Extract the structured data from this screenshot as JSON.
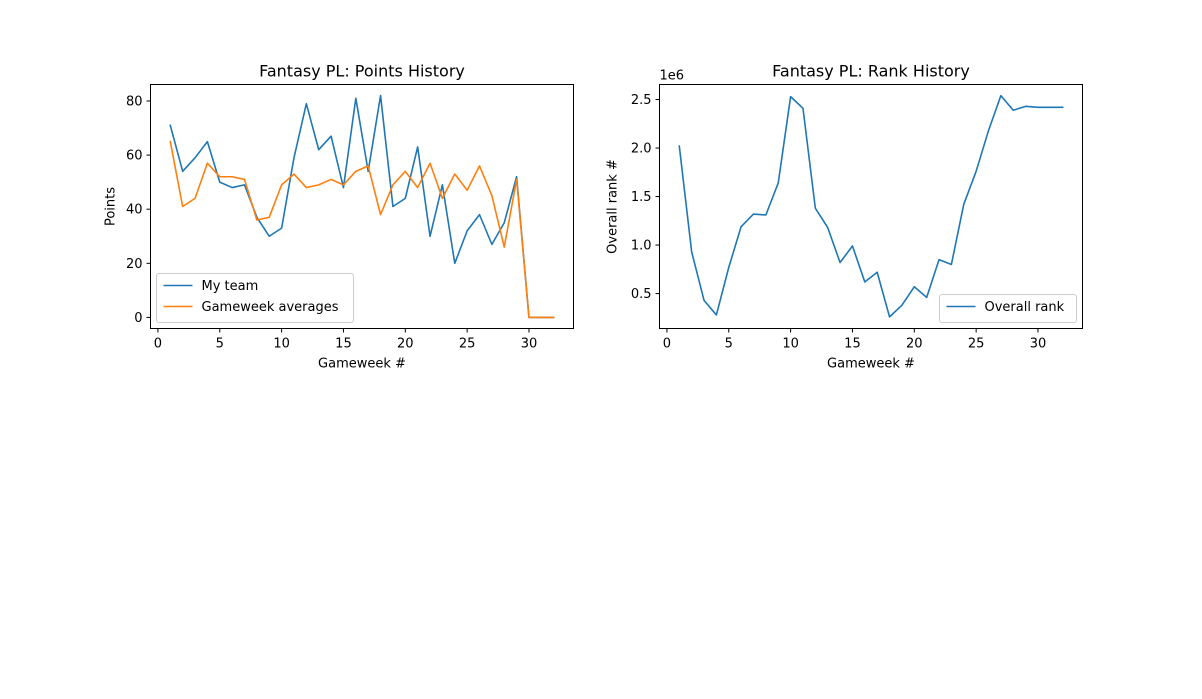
{
  "chart_data": [
    {
      "type": "line",
      "title": "Fantasy PL: Points History",
      "xlabel": "Gameweek #",
      "ylabel": "Points",
      "xlim": [
        -0.6,
        33.6
      ],
      "ylim": [
        -4.1,
        86.1
      ],
      "xticks": [
        0,
        5,
        10,
        15,
        20,
        25,
        30
      ],
      "yticks": [
        0,
        20,
        40,
        60,
        80
      ],
      "grid": false,
      "legend_position": "lower-left",
      "x": [
        1,
        2,
        3,
        4,
        5,
        6,
        7,
        8,
        9,
        10,
        11,
        12,
        13,
        14,
        15,
        16,
        17,
        18,
        19,
        20,
        21,
        22,
        23,
        24,
        25,
        26,
        27,
        28,
        29,
        30,
        31,
        32
      ],
      "series": [
        {
          "name": "My team",
          "color": "#1f77b4",
          "values": [
            71,
            54,
            59,
            65,
            50,
            48,
            49,
            37,
            30,
            33,
            59,
            79,
            62,
            67,
            48,
            81,
            54,
            82,
            41,
            44,
            63,
            30,
            49,
            20,
            32,
            38,
            27,
            35,
            52,
            0,
            0,
            0
          ]
        },
        {
          "name": "Gameweek averages",
          "color": "#ff7f0e",
          "values": [
            65,
            41,
            44,
            57,
            52,
            52,
            51,
            36,
            37,
            49,
            53,
            48,
            49,
            51,
            49,
            54,
            56,
            38,
            49,
            54,
            48,
            57,
            44,
            53,
            47,
            56,
            45,
            26,
            51,
            0,
            0,
            0
          ]
        }
      ]
    },
    {
      "type": "line",
      "title": "Fantasy PL: Rank History",
      "xlabel": "Gameweek #",
      "ylabel": "Overall rank #",
      "y_multiplier": "1e6",
      "xlim": [
        -0.6,
        33.6
      ],
      "ylim": [
        0.14,
        2.655
      ],
      "xticks": [
        0,
        5,
        10,
        15,
        20,
        25,
        30
      ],
      "yticks": [
        0.5,
        1.0,
        1.5,
        2.0,
        2.5
      ],
      "yticklabels": [
        "0.5",
        "1.0",
        "1.5",
        "2.0",
        "2.5"
      ],
      "grid": false,
      "legend_position": "lower-right",
      "x": [
        1,
        2,
        3,
        4,
        5,
        6,
        7,
        8,
        9,
        10,
        11,
        12,
        13,
        14,
        15,
        16,
        17,
        18,
        19,
        20,
        21,
        22,
        23,
        24,
        25,
        26,
        27,
        28,
        29,
        30,
        31,
        32
      ],
      "series": [
        {
          "name": "Overall rank",
          "color": "#1f77b4",
          "values": [
            2.02,
            0.93,
            0.43,
            0.28,
            0.77,
            1.19,
            1.32,
            1.31,
            1.64,
            2.53,
            2.41,
            1.38,
            1.18,
            0.82,
            0.99,
            0.62,
            0.72,
            0.26,
            0.38,
            0.57,
            0.46,
            0.85,
            0.8,
            1.42,
            1.76,
            2.18,
            2.54,
            2.39,
            2.43,
            2.42,
            2.42,
            2.42
          ]
        }
      ]
    }
  ]
}
